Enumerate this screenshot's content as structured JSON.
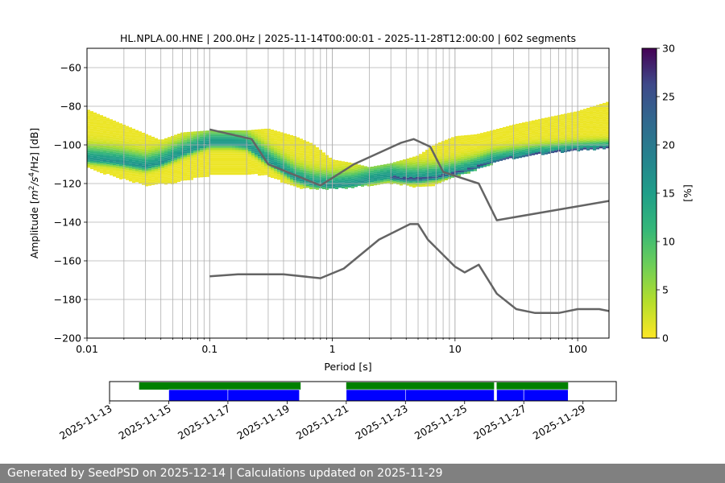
{
  "chart_data": {
    "type": "heatmap",
    "title": "HL.NPLA.00.HNE | 200.0Hz | 2025-11-14T00:00:01 - 2025-11-28T12:00:00 | 602 segments",
    "xlabel": "Period [s]",
    "ylabel_parts": {
      "main": "Amplitude [",
      "m": "m",
      "exp2": "2",
      "s": "/s",
      "exp4": "4",
      "hz": "/Hz] [dB]"
    },
    "x_scale": "log",
    "xlim": [
      0.01,
      180
    ],
    "ylim": [
      -200,
      -50
    ],
    "grid": true,
    "x_ticks": [
      {
        "value": 0.01,
        "label": "0.01"
      },
      {
        "value": 0.1,
        "label": "0.1"
      },
      {
        "value": 1,
        "label": "1"
      },
      {
        "value": 10,
        "label": "10"
      },
      {
        "value": 100,
        "label": "100"
      }
    ],
    "y_ticks": [
      {
        "value": -60,
        "label": "−60"
      },
      {
        "value": -80,
        "label": "−80"
      },
      {
        "value": -100,
        "label": "−100"
      },
      {
        "value": -120,
        "label": "−120"
      },
      {
        "value": -140,
        "label": "−140"
      },
      {
        "value": -160,
        "label": "−160"
      },
      {
        "value": -180,
        "label": "−180"
      },
      {
        "value": -200,
        "label": "−200"
      }
    ],
    "colorbar": {
      "label": "[%]",
      "colormap": "viridis_r",
      "min": 0,
      "max": 30,
      "ticks": [
        {
          "value": 0,
          "label": "0"
        },
        {
          "value": 5,
          "label": "5"
        },
        {
          "value": 10,
          "label": "10"
        },
        {
          "value": 15,
          "label": "15"
        },
        {
          "value": 20,
          "label": "20"
        },
        {
          "value": 25,
          "label": "25"
        },
        {
          "value": 30,
          "label": "30"
        }
      ]
    },
    "density_mode": [
      [
        0.01,
        -107
      ],
      [
        0.015,
        -108
      ],
      [
        0.02,
        -109
      ],
      [
        0.03,
        -111
      ],
      [
        0.04,
        -109
      ],
      [
        0.06,
        -104
      ],
      [
        0.08,
        -101
      ],
      [
        0.1,
        -99
      ],
      [
        0.15,
        -99
      ],
      [
        0.2,
        -100
      ],
      [
        0.3,
        -108
      ],
      [
        0.4,
        -113
      ],
      [
        0.5,
        -117
      ],
      [
        0.7,
        -120
      ],
      [
        1,
        -121
      ],
      [
        1.5,
        -120
      ],
      [
        2,
        -118
      ],
      [
        3,
        -116
      ],
      [
        4,
        -117
      ],
      [
        5,
        -117
      ],
      [
        7,
        -116
      ],
      [
        10,
        -114
      ],
      [
        15,
        -111
      ],
      [
        20,
        -108
      ],
      [
        30,
        -106
      ],
      [
        50,
        -104
      ],
      [
        100,
        -102
      ],
      [
        180,
        -101
      ]
    ],
    "density_upper": [
      [
        0.01,
        -82
      ],
      [
        0.02,
        -90
      ],
      [
        0.04,
        -98
      ],
      [
        0.06,
        -94
      ],
      [
        0.1,
        -93
      ],
      [
        0.2,
        -93
      ],
      [
        0.3,
        -92
      ],
      [
        0.5,
        -96
      ],
      [
        0.7,
        -100
      ],
      [
        1,
        -108
      ],
      [
        1.5,
        -110
      ],
      [
        2,
        -112
      ],
      [
        3,
        -110
      ],
      [
        5,
        -106
      ],
      [
        7,
        -100
      ],
      [
        10,
        -96
      ],
      [
        15,
        -95
      ],
      [
        20,
        -93
      ],
      [
        30,
        -90
      ],
      [
        50,
        -87
      ],
      [
        100,
        -83
      ],
      [
        180,
        -78
      ]
    ],
    "density_lower": [
      [
        0.01,
        -112
      ],
      [
        0.02,
        -118
      ],
      [
        0.03,
        -121
      ],
      [
        0.05,
        -120
      ],
      [
        0.08,
        -117
      ],
      [
        0.1,
        -116
      ],
      [
        0.2,
        -115
      ],
      [
        0.3,
        -116
      ],
      [
        0.5,
        -122
      ],
      [
        0.7,
        -123
      ],
      [
        1,
        -123
      ],
      [
        1.5,
        -122
      ],
      [
        2,
        -121
      ],
      [
        3,
        -120
      ],
      [
        5,
        -122
      ],
      [
        7,
        -121
      ],
      [
        10,
        -117
      ],
      [
        15,
        -113
      ],
      [
        20,
        -110
      ],
      [
        30,
        -107
      ],
      [
        50,
        -105
      ],
      [
        100,
        -103
      ],
      [
        180,
        -102
      ]
    ],
    "series": [
      {
        "name": "",
        "values": [
          [
            0.1,
            -92
          ],
          [
            0.22,
            -97
          ],
          [
            0.3,
            -110
          ],
          [
            0.8,
            -121
          ],
          [
            1.5,
            -110
          ],
          [
            3.6,
            -99
          ],
          [
            4.6,
            -97
          ],
          [
            6.3,
            -101
          ],
          [
            8,
            -114
          ],
          [
            10,
            -116
          ],
          [
            15.6,
            -120
          ],
          [
            21.9,
            -139
          ],
          [
            180,
            -129
          ]
        ]
      },
      {
        "name": "",
        "values": [
          [
            0.1,
            -168
          ],
          [
            0.17,
            -167
          ],
          [
            0.4,
            -167
          ],
          [
            0.8,
            -169
          ],
          [
            1.24,
            -164
          ],
          [
            2.4,
            -149
          ],
          [
            4.3,
            -141
          ],
          [
            5.0,
            -141
          ],
          [
            6.0,
            -149
          ],
          [
            10,
            -163
          ],
          [
            12,
            -166
          ],
          [
            15.6,
            -162
          ],
          [
            21.9,
            -177
          ],
          [
            31.6,
            -185
          ],
          [
            45,
            -187
          ],
          [
            70,
            -187
          ],
          [
            100,
            -185
          ],
          [
            150,
            -185
          ],
          [
            180,
            -186
          ]
        ]
      }
    ]
  },
  "availability": {
    "xlim": [
      "2025-11-13 00:00",
      "2025-11-30 03:00"
    ],
    "ticks": [
      {
        "value": "2025-11-13",
        "label": "2025-11-13"
      },
      {
        "value": "2025-11-15",
        "label": "2025-11-15"
      },
      {
        "value": "2025-11-17",
        "label": "2025-11-17"
      },
      {
        "value": "2025-11-19",
        "label": "2025-11-19"
      },
      {
        "value": "2025-11-21",
        "label": "2025-11-21"
      },
      {
        "value": "2025-11-23",
        "label": "2025-11-23"
      },
      {
        "value": "2025-11-25",
        "label": "2025-11-25"
      },
      {
        "value": "2025-11-27",
        "label": "2025-11-27"
      },
      {
        "value": "2025-11-29",
        "label": "2025-11-29"
      }
    ],
    "data_bars": [
      [
        "2025-11-14 00:00",
        "2025-11-19 11:00"
      ],
      [
        "2025-11-21 00:00",
        "2025-11-26 00:00"
      ],
      [
        "2025-11-26 02:00",
        "2025-11-28 12:00"
      ]
    ],
    "psd_bars": [
      [
        "2025-11-15 00:00",
        "2025-11-17 00:00"
      ],
      [
        "2025-11-17 00:00",
        "2025-11-19 10:00"
      ],
      [
        "2025-11-21 00:00",
        "2025-11-23 00:00"
      ],
      [
        "2025-11-23 00:00",
        "2025-11-26 00:00"
      ],
      [
        "2025-11-26 02:00",
        "2025-11-27 00:00"
      ],
      [
        "2025-11-27 00:00",
        "2025-11-28 12:00"
      ]
    ],
    "colors": {
      "data": "#008000",
      "psd": "#0000ff"
    }
  },
  "footer": {
    "text": "Generated by SeedPSD on 2025-12-14 | Calculations updated on 2025-11-29"
  }
}
